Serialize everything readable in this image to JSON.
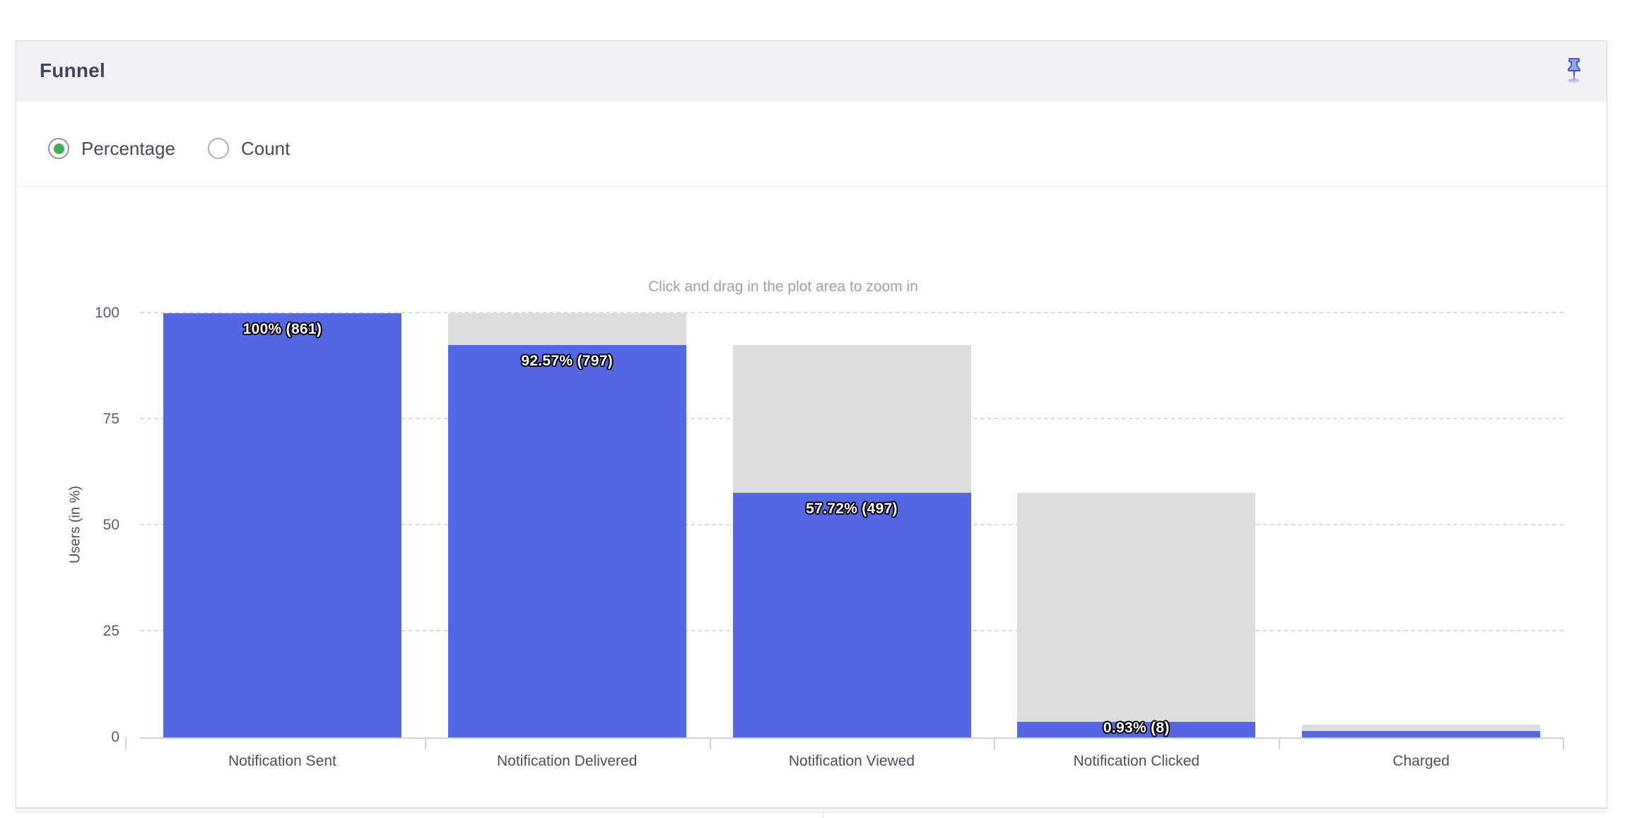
{
  "card": {
    "title": "Funnel"
  },
  "header_actions": {
    "pin_icon": "pushpin-icon"
  },
  "view_toggle": {
    "options": [
      {
        "label": "Percentage",
        "selected": true
      },
      {
        "label": "Count",
        "selected": false
      }
    ]
  },
  "chart": {
    "hint": "Click and drag in the plot area to zoom in"
  },
  "chart_data": {
    "type": "bar",
    "subtype": "funnel-steps-with-previous-step-ghost",
    "title": "Funnel",
    "categories": [
      "Notification Sent",
      "Notification Delivered",
      "Notification Viewed",
      "Notification Clicked",
      "Charged"
    ],
    "series": [
      {
        "name": "Users",
        "percentages": [
          100,
          92.57,
          57.72,
          0.93,
          null
        ],
        "counts": [
          861,
          797,
          497,
          8,
          null
        ]
      }
    ],
    "data_labels": [
      "100% (861)",
      "92.57% (797)",
      "57.72% (497)",
      "0.93% (8)",
      null
    ],
    "xlabel": "",
    "ylabel": "Users (in %)",
    "ylim": [
      0,
      100
    ],
    "yticks": [
      0,
      25,
      50,
      75,
      100
    ],
    "grid": "horizontal-dashed",
    "legend": "none",
    "colors": {
      "bar": "#5468e4",
      "ghost": "#dddddd",
      "grid": "#dcdcdc",
      "axis": "#cdd2e6"
    }
  },
  "colors": {
    "radio_selected": "#3fae54",
    "pin": "#3a57c4",
    "header_bg": "#f1f1f6"
  }
}
